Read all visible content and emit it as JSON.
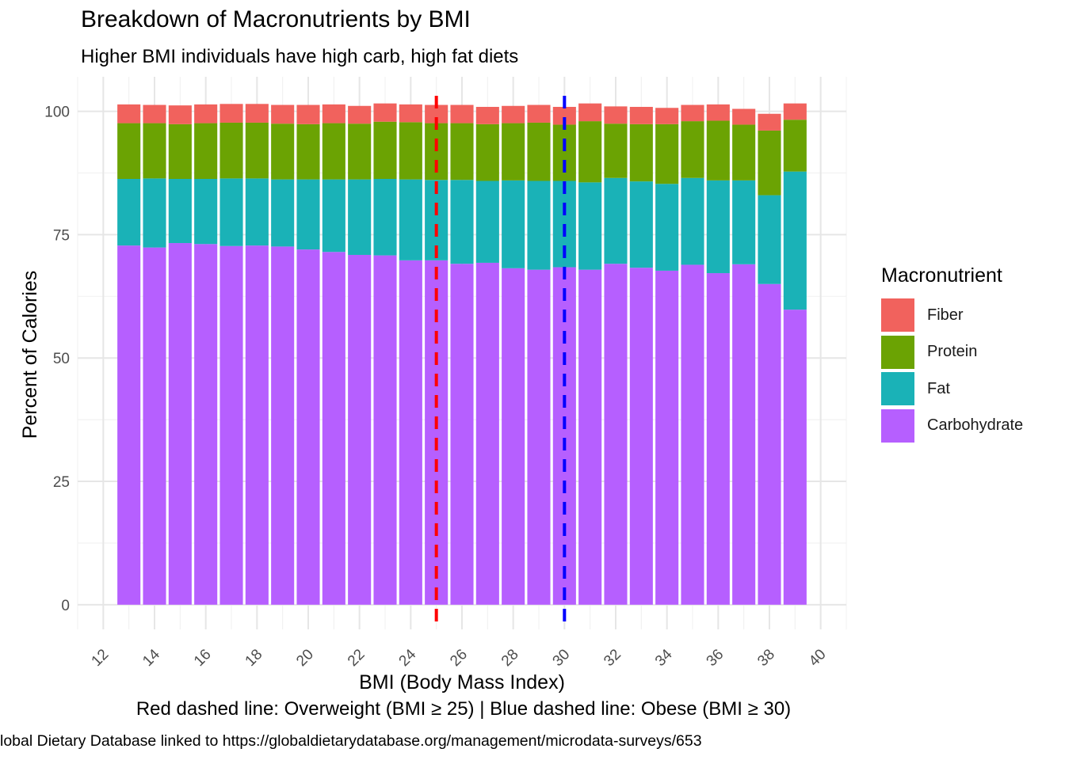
{
  "chart_data": {
    "type": "bar",
    "stacked": true,
    "title": "Breakdown of Macronutrients by BMI",
    "subtitle": "Higher BMI individuals have high carb, high fat diets",
    "xlabel": "BMI (Body Mass Index)",
    "ylabel": "Percent of Calories",
    "caption_line1": "Red dashed line: Overweight (BMI ≥ 25) | Blue dashed line: Obese (BMI ≥ 30)",
    "caption_line2": "lobal Dietary Database linked to https://globaldietarydatabase.org/management/microdata-surveys/653",
    "xlim": [
      11,
      41
    ],
    "ylim": [
      -5,
      107
    ],
    "x_ticks": [
      12,
      14,
      16,
      18,
      20,
      22,
      24,
      26,
      28,
      30,
      32,
      34,
      36,
      38,
      40
    ],
    "y_ticks": [
      0,
      25,
      50,
      75,
      100
    ],
    "grid": true,
    "legend_title": "Macronutrient",
    "legend_position": "right",
    "x": [
      13,
      14,
      15,
      16,
      17,
      18,
      19,
      20,
      21,
      22,
      23,
      24,
      25,
      26,
      27,
      28,
      29,
      30,
      31,
      32,
      33,
      34,
      35,
      36,
      37,
      38,
      39
    ],
    "series": [
      {
        "name": "Carbohydrate",
        "color": "#B65FFF",
        "values": [
          72.8,
          72.4,
          73.3,
          73.1,
          72.7,
          72.8,
          72.6,
          72.0,
          71.5,
          70.9,
          70.8,
          69.8,
          69.8,
          69.1,
          69.3,
          68.2,
          67.9,
          68.4,
          67.9,
          69.1,
          68.3,
          67.7,
          68.9,
          67.2,
          69.0,
          65.0,
          59.8
        ]
      },
      {
        "name": "Fat",
        "color": "#1AB2B7",
        "values": [
          13.5,
          14.0,
          13.0,
          13.2,
          13.7,
          13.6,
          13.6,
          14.2,
          14.7,
          15.3,
          15.5,
          16.4,
          16.3,
          17.0,
          16.6,
          17.8,
          18.0,
          17.5,
          17.7,
          17.4,
          17.5,
          17.6,
          17.6,
          18.8,
          17.0,
          18.0,
          28.0
        ]
      },
      {
        "name": "Protein",
        "color": "#6BA303",
        "values": [
          11.3,
          11.2,
          11.1,
          11.3,
          11.3,
          11.3,
          11.3,
          11.2,
          11.4,
          11.3,
          11.6,
          11.6,
          11.5,
          11.5,
          11.5,
          11.6,
          11.8,
          11.4,
          12.4,
          11.0,
          11.6,
          12.1,
          11.5,
          12.1,
          11.3,
          13.1,
          10.5
        ]
      },
      {
        "name": "Fiber",
        "color": "#F1625D",
        "values": [
          3.8,
          3.7,
          3.8,
          3.8,
          3.8,
          3.8,
          3.8,
          3.9,
          3.8,
          3.6,
          3.7,
          3.6,
          3.7,
          3.7,
          3.5,
          3.5,
          3.6,
          3.6,
          3.6,
          3.5,
          3.5,
          3.3,
          3.3,
          3.3,
          3.2,
          3.4,
          3.3
        ]
      }
    ],
    "vlines": [
      {
        "x": 25,
        "color": "#FF0000",
        "style": "dashed",
        "label": "Overweight (BMI ≥ 25)"
      },
      {
        "x": 30,
        "color": "#0000FF",
        "style": "dashed",
        "label": "Obese (BMI ≥ 30)"
      }
    ]
  }
}
